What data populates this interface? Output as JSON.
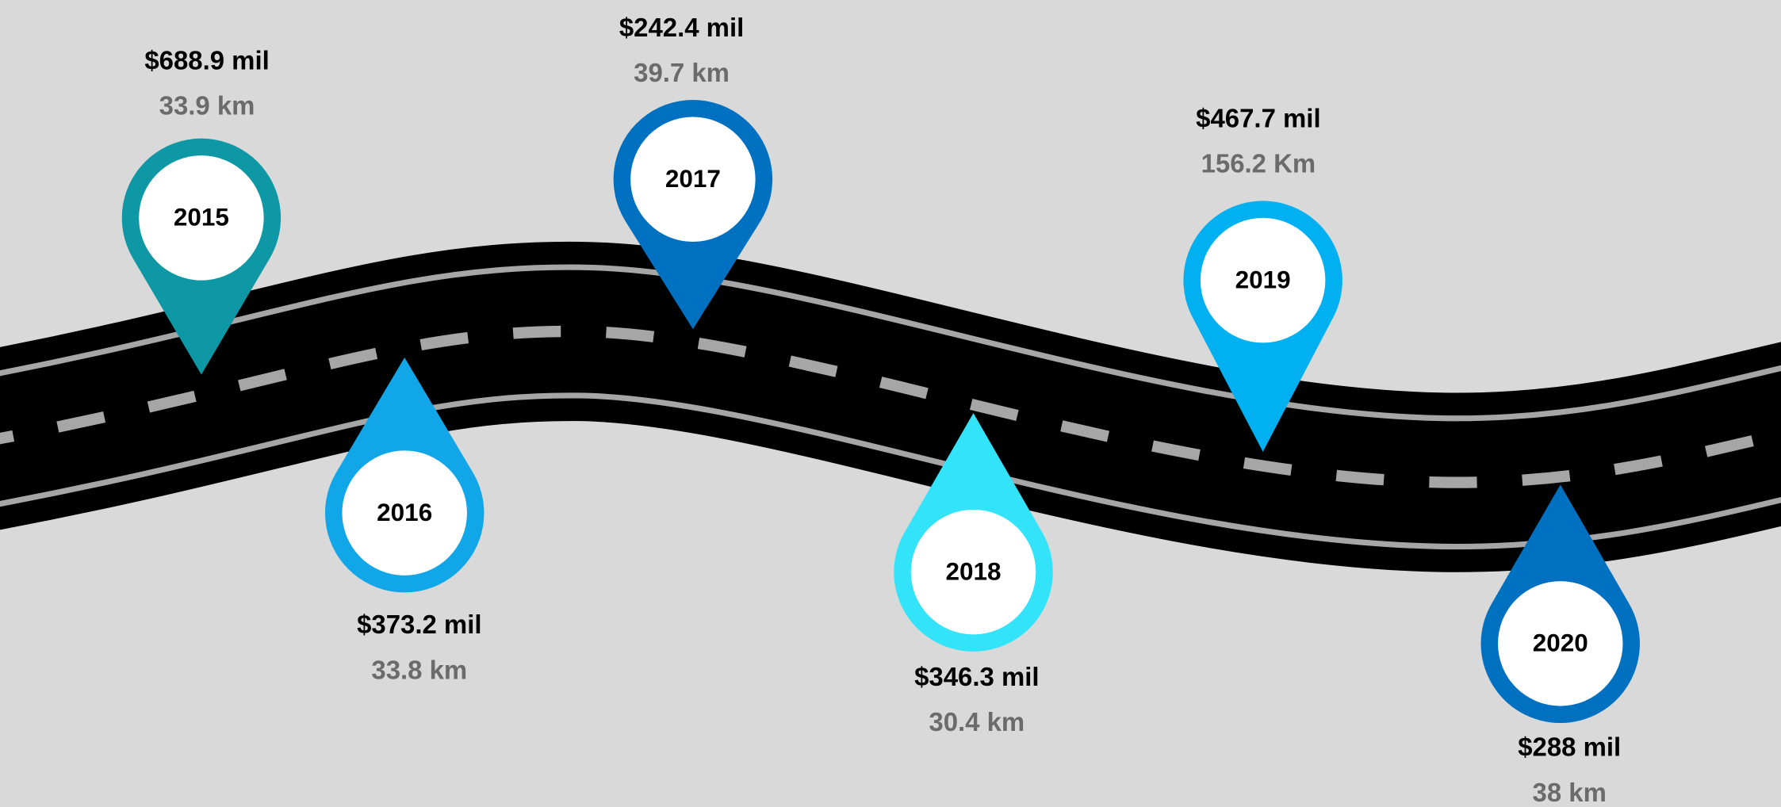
{
  "milestones": [
    {
      "year": "2015",
      "amount": "$688.9 mil",
      "distance": "33.9 km"
    },
    {
      "year": "2016",
      "amount": "$373.2 mil",
      "distance": "33.8 km"
    },
    {
      "year": "2017",
      "amount": "$242.4 mil",
      "distance": "39.7 km"
    },
    {
      "year": "2018",
      "amount": "$346.3 mil",
      "distance": "30.4 km"
    },
    {
      "year": "2019",
      "amount": "$467.7 mil",
      "distance": "156.2 Km"
    },
    {
      "year": "2020",
      "amount": "$288 mil",
      "distance": "38 km"
    }
  ]
}
